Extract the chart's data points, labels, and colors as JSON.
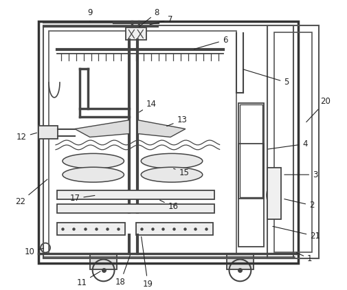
{
  "figsize": [
    5.06,
    4.22
  ],
  "dpi": 100,
  "bg_color": "#ffffff",
  "line_color": "#444444",
  "label_color": "#222222",
  "fontsize": 8.5
}
